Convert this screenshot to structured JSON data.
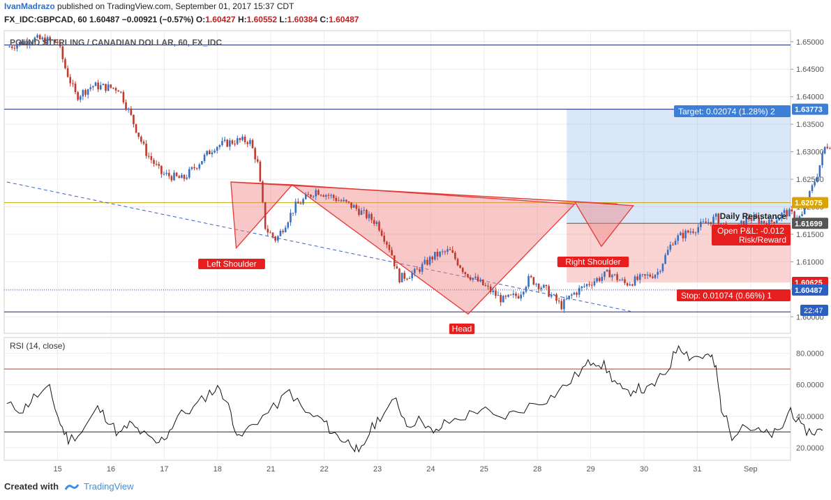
{
  "header": {
    "user": "IvanMadrazo",
    "published": "published on TradingView.com, September 01, 2017 15:37 CDT",
    "symbol": "FX_IDC:GBPCAD, 60",
    "last": "1.60487",
    "change": "−0.00921 (−0.57%)",
    "o_label": "O:",
    "o": "1.60427",
    "h_label": "H:",
    "h": "1.60552",
    "l_label": "L:",
    "l": "1.60384",
    "c_label": "C:",
    "c": "1.60487"
  },
  "footer": {
    "created": "Created with",
    "brand": "TradingView"
  },
  "colors": {
    "up": "#3a6fbf",
    "down": "#c0392b",
    "pattern": "#e53935",
    "target": "#3d7fd6",
    "resistance": "#c8a200",
    "axis": "#555555",
    "grid": "#ececec"
  },
  "chart_data": {
    "type": "candlestick",
    "title": "POUND STERLING / CANADIAN DOLLAR, 60, FX_IDC",
    "ylim": [
      1.597,
      1.652
    ],
    "yticks": [
      "1.65000",
      "1.64500",
      "1.64000",
      "1.63500",
      "1.63000",
      "1.62500",
      "1.62000",
      "1.61500",
      "1.61000",
      "1.60500",
      "1.60000"
    ],
    "yvals": [
      1.65,
      1.645,
      1.64,
      1.635,
      1.63,
      1.625,
      1.62,
      1.615,
      1.61,
      1.605,
      1.6
    ],
    "xlabels": [
      "15",
      "16",
      "17",
      "18",
      "21",
      "22",
      "23",
      "24",
      "25",
      "28",
      "29",
      "30",
      "31",
      "Sep"
    ],
    "price_path": [
      [
        0,
        1.649
      ],
      [
        0.5,
        1.6505
      ],
      [
        0.95,
        1.65
      ],
      [
        1.1,
        1.645
      ],
      [
        1.3,
        1.64
      ],
      [
        1.6,
        1.642
      ],
      [
        2.1,
        1.6415
      ],
      [
        2.3,
        1.637
      ],
      [
        2.6,
        1.63
      ],
      [
        2.9,
        1.626
      ],
      [
        3.3,
        1.625
      ],
      [
        3.6,
        1.628
      ],
      [
        3.9,
        1.631
      ],
      [
        4.3,
        1.632
      ],
      [
        4.55,
        1.632
      ],
      [
        4.7,
        1.628
      ],
      [
        4.85,
        1.616
      ],
      [
        5.05,
        1.614
      ],
      [
        5.4,
        1.62
      ],
      [
        5.8,
        1.623
      ],
      [
        6.05,
        1.622
      ],
      [
        6.5,
        1.62
      ],
      [
        6.95,
        1.617
      ],
      [
        7.2,
        1.612
      ],
      [
        7.35,
        1.607
      ],
      [
        7.65,
        1.608
      ],
      [
        8.0,
        1.611
      ],
      [
        8.3,
        1.612
      ],
      [
        8.6,
        1.608
      ],
      [
        8.9,
        1.606
      ],
      [
        9.3,
        1.603
      ],
      [
        9.6,
        1.604
      ],
      [
        9.8,
        1.607
      ],
      [
        10.1,
        1.605
      ],
      [
        10.4,
        1.602
      ],
      [
        10.6,
        1.604
      ],
      [
        10.9,
        1.606
      ],
      [
        11.3,
        1.608
      ],
      [
        11.6,
        1.606
      ],
      [
        11.9,
        1.607
      ],
      [
        12.2,
        1.608
      ],
      [
        12.5,
        1.614
      ],
      [
        12.9,
        1.616
      ],
      [
        13.3,
        1.618
      ],
      [
        13.6,
        1.615
      ],
      [
        13.9,
        1.618
      ],
      [
        14.3,
        1.617
      ],
      [
        14.6,
        1.619
      ],
      [
        14.9,
        1.618
      ],
      [
        15.2,
        1.626
      ],
      [
        15.35,
        1.631
      ],
      [
        15.6,
        1.632
      ],
      [
        15.9,
        1.631
      ],
      [
        16.05,
        1.634
      ],
      [
        16.2,
        1.629
      ],
      [
        16.35,
        1.624
      ],
      [
        16.5,
        1.617
      ],
      [
        16.7,
        1.615
      ],
      [
        17.0,
        1.614
      ],
      [
        17.3,
        1.612
      ],
      [
        17.5,
        1.608
      ],
      [
        17.6,
        1.606
      ],
      [
        17.85,
        1.605
      ]
    ],
    "lines": {
      "top_resistance": 1.6494,
      "target_line": 1.63773,
      "daily_resistance": 1.62075,
      "entry": 1.61699,
      "stop_line": 1.60625,
      "last_price": 1.60487,
      "bottom_support": 1.6009
    },
    "pattern": {
      "left_shoulder_label": "Left Shoulder",
      "head_label": "Head",
      "right_shoulder_label": "Right Shoulder",
      "neckline_start": [
        4.2,
        1.6245
      ],
      "neckline_end": [
        11.45,
        1.6205
      ],
      "left_shoulder": [
        4.3,
        1.6125
      ],
      "neck_1": [
        5.35,
        1.624
      ],
      "head": [
        8.65,
        1.6005
      ],
      "neck_2": [
        10.65,
        1.6205
      ],
      "right_shoulder": [
        11.15,
        1.6128
      ],
      "right_end": [
        11.75,
        1.6202
      ],
      "trendline_start": [
        0.0,
        1.6245
      ],
      "trendline_end": [
        11.7,
        1.601
      ]
    },
    "position": {
      "target_label": "Target: 0.02074 (1.28%) 2",
      "stop_label": "Stop: 0.01074 (0.66%) 1",
      "pnl_label": "Open P&L: -0.012",
      "rr_label": "Risk/Reward",
      "resistance_label": "Daily Resistance",
      "x_start": 10.5
    },
    "price_badges": [
      {
        "text": "1.63773",
        "value": 1.63773,
        "color": "#3d7fd6"
      },
      {
        "text": "1.62075",
        "value": 1.62075,
        "color": "#d9a400"
      },
      {
        "text": "1.61699",
        "value": 1.61699,
        "color": "#555555"
      },
      {
        "text": "1.60625",
        "value": 1.60625,
        "color": "#e02020"
      },
      {
        "text": "1.60487",
        "value": 1.60487,
        "color": "#2a5fc1"
      }
    ],
    "time_badge": "22:47",
    "rsi": {
      "label": "RSI (14, close)",
      "ylim": [
        12,
        90
      ],
      "yticks": [
        "80.0000",
        "60.0000",
        "40.0000",
        "20.0000"
      ],
      "yvals": [
        80,
        60,
        40,
        20
      ],
      "overbought": 70,
      "oversold": 30,
      "path": [
        [
          0,
          47
        ],
        [
          0.3,
          44
        ],
        [
          0.5,
          52
        ],
        [
          0.8,
          57
        ],
        [
          1.0,
          35
        ],
        [
          1.15,
          25
        ],
        [
          1.4,
          30
        ],
        [
          1.7,
          45
        ],
        [
          1.9,
          38
        ],
        [
          2.1,
          28
        ],
        [
          2.3,
          35
        ],
        [
          2.5,
          30
        ],
        [
          2.8,
          22
        ],
        [
          3.0,
          28
        ],
        [
          3.2,
          40
        ],
        [
          3.5,
          45
        ],
        [
          3.8,
          55
        ],
        [
          4.0,
          58
        ],
        [
          4.2,
          42
        ],
        [
          4.35,
          25
        ],
        [
          4.6,
          35
        ],
        [
          5.0,
          45
        ],
        [
          5.3,
          56
        ],
        [
          5.6,
          42
        ],
        [
          5.9,
          38
        ],
        [
          6.1,
          30
        ],
        [
          6.3,
          25
        ],
        [
          6.5,
          22
        ],
        [
          6.6,
          15
        ],
        [
          6.8,
          30
        ],
        [
          7.0,
          40
        ],
        [
          7.3,
          50
        ],
        [
          7.5,
          35
        ],
        [
          7.8,
          38
        ],
        [
          8.0,
          28
        ],
        [
          8.2,
          35
        ],
        [
          8.6,
          40
        ],
        [
          8.9,
          45
        ],
        [
          9.2,
          38
        ],
        [
          9.5,
          42
        ],
        [
          9.9,
          48
        ],
        [
          10.2,
          52
        ],
        [
          10.5,
          60
        ],
        [
          10.8,
          70
        ],
        [
          11.0,
          76
        ],
        [
          11.2,
          72
        ],
        [
          11.4,
          62
        ],
        [
          11.6,
          54
        ],
        [
          11.8,
          58
        ],
        [
          12.0,
          56
        ],
        [
          12.2,
          62
        ],
        [
          12.4,
          70
        ],
        [
          12.6,
          86
        ],
        [
          12.8,
          78
        ],
        [
          13.0,
          78
        ],
        [
          13.2,
          78
        ],
        [
          13.3,
          70
        ],
        [
          13.4,
          46
        ],
        [
          13.6,
          28
        ],
        [
          13.8,
          35
        ],
        [
          14.1,
          30
        ],
        [
          14.3,
          28
        ],
        [
          14.5,
          30
        ],
        [
          14.7,
          45
        ],
        [
          14.9,
          32
        ],
        [
          15.1,
          30
        ],
        [
          15.3,
          31
        ]
      ]
    },
    "daylabel_pos": [
      0.95,
      1.95,
      2.95,
      3.95,
      4.95,
      5.95,
      6.95,
      7.95,
      8.95,
      9.95,
      10.95,
      11.95,
      12.95,
      13.95
    ]
  }
}
